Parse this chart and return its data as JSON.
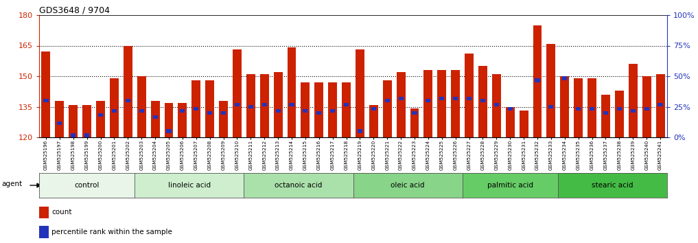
{
  "title": "GDS3648 / 9704",
  "samples": [
    "GSM525196",
    "GSM525197",
    "GSM525198",
    "GSM525199",
    "GSM525200",
    "GSM525201",
    "GSM525202",
    "GSM525203",
    "GSM525204",
    "GSM525205",
    "GSM525206",
    "GSM525207",
    "GSM525208",
    "GSM525209",
    "GSM525210",
    "GSM525211",
    "GSM525212",
    "GSM525213",
    "GSM525214",
    "GSM525215",
    "GSM525216",
    "GSM525217",
    "GSM525218",
    "GSM525219",
    "GSM525220",
    "GSM525221",
    "GSM525222",
    "GSM525223",
    "GSM525224",
    "GSM525225",
    "GSM525226",
    "GSM525227",
    "GSM525228",
    "GSM525229",
    "GSM525230",
    "GSM525231",
    "GSM525232",
    "GSM525233",
    "GSM525234",
    "GSM525235",
    "GSM525236",
    "GSM525237",
    "GSM525238",
    "GSM525239",
    "GSM525240",
    "GSM525241"
  ],
  "bar_heights": [
    162,
    138,
    136,
    136,
    138,
    149,
    165,
    150,
    138,
    137,
    137,
    148,
    148,
    138,
    163,
    151,
    151,
    152,
    164,
    147,
    147,
    147,
    147,
    163,
    136,
    148,
    152,
    134,
    153,
    153,
    153,
    161,
    155,
    151,
    135,
    133,
    175,
    166,
    150,
    149,
    149,
    141,
    143,
    156,
    150,
    151
  ],
  "percentile_heights": [
    138,
    127,
    121,
    121,
    131,
    133,
    138,
    133,
    130,
    123,
    133,
    134,
    132,
    132,
    136,
    135,
    136,
    133,
    136,
    133,
    132,
    133,
    136,
    123,
    134,
    138,
    139,
    132,
    138,
    139,
    139,
    139,
    138,
    136,
    134,
    119,
    148,
    135,
    149,
    134,
    134,
    132,
    134,
    133,
    134,
    136
  ],
  "groups": [
    {
      "label": "control",
      "start": 0,
      "end": 7
    },
    {
      "label": "linoleic acid",
      "start": 7,
      "end": 15
    },
    {
      "label": "octanoic acid",
      "start": 15,
      "end": 23
    },
    {
      "label": "oleic acid",
      "start": 23,
      "end": 31
    },
    {
      "label": "palmitic acid",
      "start": 31,
      "end": 38
    },
    {
      "label": "stearic acid",
      "start": 38,
      "end": 46
    }
  ],
  "group_bg_colors": [
    "#e8f5e8",
    "#ceeece",
    "#aae0aa",
    "#88d488",
    "#66cc66",
    "#44bb44"
  ],
  "bar_color": "#cc2200",
  "percentile_color": "#2233bb",
  "ymin": 120,
  "ymax": 180,
  "yticks": [
    120,
    135,
    150,
    165,
    180
  ],
  "dotted_lines": [
    135,
    150,
    165
  ],
  "legend_count_label": "count",
  "legend_percentile_label": "percentile rank within the sample",
  "bar_width": 0.65,
  "xtick_bg_color": "#d8d8d8",
  "agent_label": "agent"
}
